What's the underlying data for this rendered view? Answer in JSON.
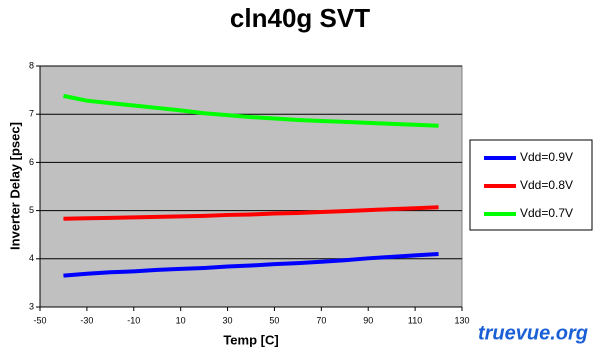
{
  "chart_data": {
    "type": "line",
    "title": "cln40g SVT",
    "x_label": "Temp [C]",
    "y_label": "Inverter Delay [psec]",
    "x": [
      -40,
      -30,
      -20,
      -10,
      0,
      10,
      20,
      30,
      40,
      50,
      60,
      70,
      80,
      90,
      100,
      110,
      120
    ],
    "series": [
      {
        "name": "Vdd=0.9V",
        "color": "#0000ff",
        "values": [
          3.65,
          3.69,
          3.72,
          3.74,
          3.77,
          3.79,
          3.81,
          3.84,
          3.86,
          3.89,
          3.91,
          3.94,
          3.97,
          4.01,
          4.04,
          4.07,
          4.1
        ]
      },
      {
        "name": "Vdd=0.8V",
        "color": "#ff0000",
        "values": [
          4.83,
          4.84,
          4.85,
          4.86,
          4.87,
          4.88,
          4.89,
          4.91,
          4.92,
          4.94,
          4.95,
          4.97,
          4.99,
          5.01,
          5.03,
          5.05,
          5.07
        ]
      },
      {
        "name": "Vdd=0.7V",
        "color": "#00ff00",
        "values": [
          7.38,
          7.28,
          7.23,
          7.18,
          7.13,
          7.08,
          7.02,
          6.98,
          6.94,
          6.91,
          6.88,
          6.86,
          6.84,
          6.82,
          6.8,
          6.78,
          6.76
        ]
      }
    ],
    "xlim": [
      -50,
      130
    ],
    "xticks": [
      -50,
      -30,
      -10,
      10,
      30,
      50,
      70,
      90,
      110,
      130
    ],
    "ylim": [
      3,
      8
    ],
    "yticks": [
      3,
      4,
      5,
      6,
      7,
      8
    ],
    "grid": true,
    "legend": "right",
    "plot_background": "#c0c0c0",
    "watermark": "truevue.org"
  }
}
